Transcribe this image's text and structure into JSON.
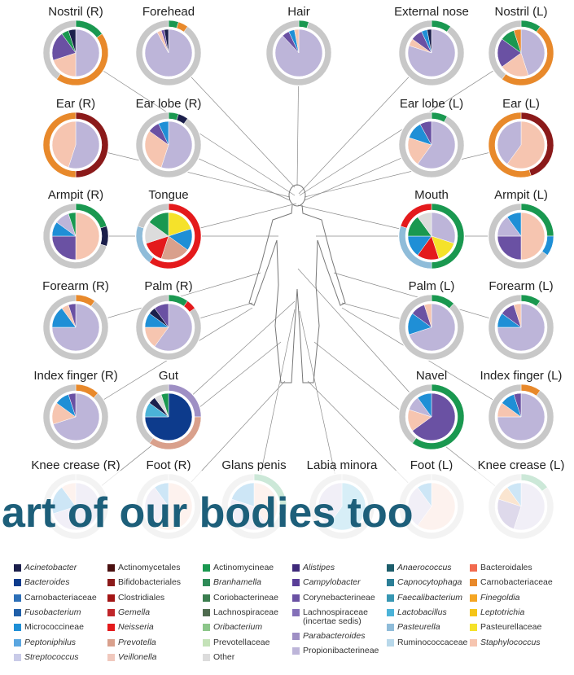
{
  "sites": [
    {
      "label": "Nostril (R)",
      "inner": [
        {
          "color": "#bdb5d9",
          "value": 50
        },
        {
          "color": "#f6c5b0",
          "value": 20
        },
        {
          "color": "#6a51a3",
          "value": 20
        },
        {
          "color": "#1a9850",
          "value": 5
        },
        {
          "color": "#1b1f4b",
          "value": 5
        }
      ],
      "outer": [
        {
          "color": "#1a9850",
          "value": 15
        },
        {
          "color": "#e8892b",
          "value": 45
        },
        {
          "color": "#c8c8c8",
          "value": 40
        }
      ]
    },
    {
      "label": "Forehead",
      "inner": [
        {
          "color": "#bdb5d9",
          "value": 92
        },
        {
          "color": "#f6c5b0",
          "value": 3
        },
        {
          "color": "#6a51a3",
          "value": 2
        },
        {
          "color": "#1b1f4b",
          "value": 3
        }
      ],
      "outer": [
        {
          "color": "#1a9850",
          "value": 5
        },
        {
          "color": "#e8892b",
          "value": 5
        },
        {
          "color": "#c8c8c8",
          "value": 90
        }
      ]
    },
    {
      "label": "Hair",
      "inner": [
        {
          "color": "#bdb5d9",
          "value": 88
        },
        {
          "color": "#6a51a3",
          "value": 5
        },
        {
          "color": "#1f8fd6",
          "value": 4
        },
        {
          "color": "#f6c5b0",
          "value": 3
        }
      ],
      "outer": [
        {
          "color": "#1a9850",
          "value": 5
        },
        {
          "color": "#c8c8c8",
          "value": 95
        }
      ]
    },
    {
      "label": "External nose",
      "inner": [
        {
          "color": "#bdb5d9",
          "value": 80
        },
        {
          "color": "#f6c5b0",
          "value": 5
        },
        {
          "color": "#6a51a3",
          "value": 8
        },
        {
          "color": "#1f8fd6",
          "value": 4
        },
        {
          "color": "#1b1f4b",
          "value": 3
        }
      ],
      "outer": [
        {
          "color": "#1a9850",
          "value": 10
        },
        {
          "color": "#c8c8c8",
          "value": 90
        }
      ]
    },
    {
      "label": "Nostril (L)",
      "inner": [
        {
          "color": "#bdb5d9",
          "value": 45
        },
        {
          "color": "#f6c5b0",
          "value": 20
        },
        {
          "color": "#6a51a3",
          "value": 20
        },
        {
          "color": "#1a9850",
          "value": 10
        },
        {
          "color": "#e8892b",
          "value": 5
        }
      ],
      "outer": [
        {
          "color": "#1a9850",
          "value": 10
        },
        {
          "color": "#e8892b",
          "value": 50
        },
        {
          "color": "#c8c8c8",
          "value": 40
        }
      ]
    },
    {
      "label": "Ear (R)",
      "inner": [
        {
          "color": "#bdb5d9",
          "value": 55
        },
        {
          "color": "#f6c5b0",
          "value": 45
        }
      ],
      "outer": [
        {
          "color": "#8b1a1a",
          "value": 50
        },
        {
          "color": "#e8892b",
          "value": 50
        }
      ]
    },
    {
      "label": "Ear lobe (R)",
      "inner": [
        {
          "color": "#bdb5d9",
          "value": 55
        },
        {
          "color": "#f6c5b0",
          "value": 30
        },
        {
          "color": "#6a51a3",
          "value": 8
        },
        {
          "color": "#1f8fd6",
          "value": 7
        }
      ],
      "outer": [
        {
          "color": "#1a9850",
          "value": 5
        },
        {
          "color": "#1b1f4b",
          "value": 5
        },
        {
          "color": "#c8c8c8",
          "value": 90
        }
      ]
    },
    {
      "label": "Ear lobe (L)",
      "inner": [
        {
          "color": "#bdb5d9",
          "value": 60
        },
        {
          "color": "#f6c5b0",
          "value": 20
        },
        {
          "color": "#1f8fd6",
          "value": 12
        },
        {
          "color": "#6a51a3",
          "value": 8
        }
      ],
      "outer": [
        {
          "color": "#1a9850",
          "value": 8
        },
        {
          "color": "#c8c8c8",
          "value": 92
        }
      ]
    },
    {
      "label": "Ear (L)",
      "inner": [
        {
          "color": "#f6c5b0",
          "value": 60
        },
        {
          "color": "#bdb5d9",
          "value": 40
        }
      ],
      "outer": [
        {
          "color": "#8b1a1a",
          "value": 45
        },
        {
          "color": "#e8892b",
          "value": 55
        }
      ]
    },
    {
      "label": "Armpit (R)",
      "inner": [
        {
          "color": "#f6c5b0",
          "value": 50
        },
        {
          "color": "#6a51a3",
          "value": 25
        },
        {
          "color": "#1f8fd6",
          "value": 10
        },
        {
          "color": "#bdb5d9",
          "value": 10
        },
        {
          "color": "#1a9850",
          "value": 5
        }
      ],
      "outer": [
        {
          "color": "#1a9850",
          "value": 20
        },
        {
          "color": "#1b1f4b",
          "value": 10
        },
        {
          "color": "#c8c8c8",
          "value": 70
        }
      ]
    },
    {
      "label": "Tongue",
      "inner": [
        {
          "color": "#f5e22a",
          "value": 20
        },
        {
          "color": "#1f8fd6",
          "value": 15
        },
        {
          "color": "#d9a08c",
          "value": 20
        },
        {
          "color": "#e41a1c",
          "value": 15
        },
        {
          "color": "#dcdcdc",
          "value": 15
        },
        {
          "color": "#1a9850",
          "value": 15
        }
      ],
      "outer": [
        {
          "color": "#e41a1c",
          "value": 60
        },
        {
          "color": "#8fbcd9",
          "value": 20
        },
        {
          "color": "#c8c8c8",
          "value": 20
        }
      ]
    },
    {
      "label": "Mouth",
      "inner": [
        {
          "color": "#bdb5d9",
          "value": 30
        },
        {
          "color": "#f5e22a",
          "value": 15
        },
        {
          "color": "#e41a1c",
          "value": 15
        },
        {
          "color": "#1f8fd6",
          "value": 15
        },
        {
          "color": "#1a9850",
          "value": 15
        },
        {
          "color": "#dcdcdc",
          "value": 10
        }
      ],
      "outer": [
        {
          "color": "#1a9850",
          "value": 50
        },
        {
          "color": "#8fbcd9",
          "value": 30
        },
        {
          "color": "#e41a1c",
          "value": 20
        }
      ]
    },
    {
      "label": "Armpit (L)",
      "inner": [
        {
          "color": "#f6c5b0",
          "value": 50
        },
        {
          "color": "#6a51a3",
          "value": 25
        },
        {
          "color": "#bdb5d9",
          "value": 15
        },
        {
          "color": "#1f8fd6",
          "value": 10
        }
      ],
      "outer": [
        {
          "color": "#1a9850",
          "value": 25
        },
        {
          "color": "#1f8fd6",
          "value": 10
        },
        {
          "color": "#c8c8c8",
          "value": 65
        }
      ]
    },
    {
      "label": "Forearm (R)",
      "inner": [
        {
          "color": "#bdb5d9",
          "value": 75
        },
        {
          "color": "#1f8fd6",
          "value": 15
        },
        {
          "color": "#f6c5b0",
          "value": 5
        },
        {
          "color": "#6a51a3",
          "value": 5
        }
      ],
      "outer": [
        {
          "color": "#e8892b",
          "value": 10
        },
        {
          "color": "#c8c8c8",
          "value": 90
        }
      ]
    },
    {
      "label": "Palm (R)",
      "inner": [
        {
          "color": "#bdb5d9",
          "value": 60
        },
        {
          "color": "#f6c5b0",
          "value": 15
        },
        {
          "color": "#1f8fd6",
          "value": 10
        },
        {
          "color": "#1b1f4b",
          "value": 5
        },
        {
          "color": "#6a51a3",
          "value": 10
        }
      ],
      "outer": [
        {
          "color": "#1a9850",
          "value": 10
        },
        {
          "color": "#e41a1c",
          "value": 5
        },
        {
          "color": "#c8c8c8",
          "value": 85
        }
      ]
    },
    {
      "label": "Palm (L)",
      "inner": [
        {
          "color": "#bdb5d9",
          "value": 70
        },
        {
          "color": "#1f8fd6",
          "value": 15
        },
        {
          "color": "#6a51a3",
          "value": 10
        },
        {
          "color": "#f6c5b0",
          "value": 5
        }
      ],
      "outer": [
        {
          "color": "#1a9850",
          "value": 12
        },
        {
          "color": "#c8c8c8",
          "value": 88
        }
      ]
    },
    {
      "label": "Forearm (L)",
      "inner": [
        {
          "color": "#bdb5d9",
          "value": 75
        },
        {
          "color": "#1f8fd6",
          "value": 10
        },
        {
          "color": "#6a51a3",
          "value": 10
        },
        {
          "color": "#f6c5b0",
          "value": 5
        }
      ],
      "outer": [
        {
          "color": "#1a9850",
          "value": 10
        },
        {
          "color": "#c8c8c8",
          "value": 90
        }
      ]
    },
    {
      "label": "Index finger (R)",
      "inner": [
        {
          "color": "#bdb5d9",
          "value": 70
        },
        {
          "color": "#f6c5b0",
          "value": 15
        },
        {
          "color": "#1f8fd6",
          "value": 10
        },
        {
          "color": "#6a51a3",
          "value": 5
        }
      ],
      "outer": [
        {
          "color": "#e8892b",
          "value": 12
        },
        {
          "color": "#c8c8c8",
          "value": 88
        }
      ]
    },
    {
      "label": "Gut",
      "inner": [
        {
          "color": "#0d3b8c",
          "value": 75
        },
        {
          "color": "#4bb3d8",
          "value": 10
        },
        {
          "color": "#1b1f4b",
          "value": 5
        },
        {
          "color": "#dcdcdc",
          "value": 5
        },
        {
          "color": "#1a9850",
          "value": 5
        }
      ],
      "outer": [
        {
          "color": "#9e8fc4",
          "value": 25
        },
        {
          "color": "#d9a08c",
          "value": 35
        },
        {
          "color": "#c8c8c8",
          "value": 40
        }
      ]
    },
    {
      "label": "Navel",
      "inner": [
        {
          "color": "#6a51a3",
          "value": 65
        },
        {
          "color": "#f6c5b0",
          "value": 15
        },
        {
          "color": "#bdb5d9",
          "value": 10
        },
        {
          "color": "#1f8fd6",
          "value": 10
        }
      ],
      "outer": [
        {
          "color": "#1a9850",
          "value": 60
        },
        {
          "color": "#c8c8c8",
          "value": 40
        }
      ]
    },
    {
      "label": "Index finger (L)",
      "inner": [
        {
          "color": "#bdb5d9",
          "value": 75
        },
        {
          "color": "#f6c5b0",
          "value": 10
        },
        {
          "color": "#1f8fd6",
          "value": 10
        },
        {
          "color": "#6a51a3",
          "value": 5
        }
      ],
      "outer": [
        {
          "color": "#e8892b",
          "value": 10
        },
        {
          "color": "#c8c8c8",
          "value": 90
        }
      ]
    },
    {
      "label": "Knee crease (R)",
      "inner": [
        {
          "color": "#bdb5d9",
          "value": 70
        },
        {
          "color": "#1f8fd6",
          "value": 20
        },
        {
          "color": "#f6c5b0",
          "value": 10
        }
      ],
      "outer": [
        {
          "color": "#c8c8c8",
          "value": 100
        }
      ]
    },
    {
      "label": "Foot (R)",
      "inner": [
        {
          "color": "#f6c5b0",
          "value": 60
        },
        {
          "color": "#bdb5d9",
          "value": 30
        },
        {
          "color": "#1f8fd6",
          "value": 10
        }
      ],
      "outer": [
        {
          "color": "#c8c8c8",
          "value": 100
        }
      ]
    },
    {
      "label": "Glans penis",
      "inner": [
        {
          "color": "#f6c5b0",
          "value": 40
        },
        {
          "color": "#bdb5d9",
          "value": 40
        },
        {
          "color": "#1f8fd6",
          "value": 20
        }
      ],
      "outer": [
        {
          "color": "#1a9850",
          "value": 30
        },
        {
          "color": "#c8c8c8",
          "value": 70
        }
      ]
    },
    {
      "label": "Labia minora",
      "inner": [
        {
          "color": "#4bb3d8",
          "value": 60
        },
        {
          "color": "#bdb5d9",
          "value": 40
        }
      ],
      "outer": [
        {
          "color": "#c8c8c8",
          "value": 100
        }
      ]
    },
    {
      "label": "Foot (L)",
      "inner": [
        {
          "color": "#f6c5b0",
          "value": 60
        },
        {
          "color": "#bdb5d9",
          "value": 30
        },
        {
          "color": "#1f8fd6",
          "value": 10
        }
      ],
      "outer": [
        {
          "color": "#c8c8c8",
          "value": 100
        }
      ]
    },
    {
      "label": "Knee crease (L)",
      "inner": [
        {
          "color": "#bdb5d9",
          "value": 55
        },
        {
          "color": "#6a51a3",
          "value": 25
        },
        {
          "color": "#e8892b",
          "value": 10
        },
        {
          "color": "#1f8fd6",
          "value": 10
        }
      ],
      "outer": [
        {
          "color": "#1a9850",
          "value": 15
        },
        {
          "color": "#c8c8c8",
          "value": 85
        }
      ]
    }
  ],
  "banner_text": "art of our bodies too",
  "legend": [
    {
      "label": "Acinetobacter",
      "color": "#1b1f4b",
      "italic": true
    },
    {
      "label": "Bacteroides",
      "color": "#0d3b8c",
      "italic": true
    },
    {
      "label": "Carnobacteriaceae",
      "color": "#2c6fb7",
      "italic": false
    },
    {
      "label": "Fusobacterium",
      "color": "#1f5fa8",
      "italic": true
    },
    {
      "label": "Micrococcineae",
      "color": "#1f8fd6",
      "italic": false
    },
    {
      "label": "Peptoniphilus",
      "color": "#5aa6e0",
      "italic": true
    },
    {
      "label": "Streptococcus",
      "color": "#c9cbe8",
      "italic": true
    },
    {
      "label": "Actinomycetales",
      "color": "#4a1010",
      "italic": false
    },
    {
      "label": "Bifidobacteriales",
      "color": "#8b1a1a",
      "italic": false
    },
    {
      "label": "Clostridiales",
      "color": "#a31515",
      "italic": false
    },
    {
      "label": "Gemella",
      "color": "#c0262a",
      "italic": true
    },
    {
      "label": "Neisseria",
      "color": "#e41a1c",
      "italic": true
    },
    {
      "label": "Prevotella",
      "color": "#d9a08c",
      "italic": true
    },
    {
      "label": "Veillonella",
      "color": "#f0c8bd",
      "italic": true
    },
    {
      "label": "Actinomycineae",
      "color": "#1a9850",
      "italic": false
    },
    {
      "label": "Branhamella",
      "color": "#2e8b57",
      "italic": true
    },
    {
      "label": "Coriobacterineae",
      "color": "#3b7d4f",
      "italic": false
    },
    {
      "label": "Lachnospiraceae",
      "color": "#4f6b4f",
      "italic": false
    },
    {
      "label": "Oribacterium",
      "color": "#8cc68a",
      "italic": true
    },
    {
      "label": "Prevotellaceae",
      "color": "#c4e2b8",
      "italic": false
    },
    {
      "label": "Other",
      "color": "#dcdcdc",
      "italic": false
    },
    {
      "label": "Alistipes",
      "color": "#3f2a7a",
      "italic": true
    },
    {
      "label": "Campylobacter",
      "color": "#5a3f98",
      "italic": true
    },
    {
      "label": "Corynebacterineae",
      "color": "#6a51a3",
      "italic": false
    },
    {
      "label": "Lachnospiraceae (incertae sedis)",
      "color": "#8470b8",
      "italic": false
    },
    {
      "label": "Parabacteroides",
      "color": "#9e8fc4",
      "italic": true
    },
    {
      "label": "Propionibacterineae",
      "color": "#bdb5d9",
      "italic": false
    },
    {
      "label": "Anaerococcus",
      "color": "#1c5d6b",
      "italic": true
    },
    {
      "label": "Capnocytophaga",
      "color": "#2b7e96",
      "italic": true
    },
    {
      "label": "Faecalibacterium",
      "color": "#3797b3",
      "italic": true
    },
    {
      "label": "Lactobacillus",
      "color": "#4bb3d8",
      "italic": true
    },
    {
      "label": "Pasteurella",
      "color": "#8fbcd9",
      "italic": true
    },
    {
      "label": "Ruminococcaceae",
      "color": "#b8d8ea",
      "italic": false
    },
    {
      "label": "Bacteroidales",
      "color": "#f26b4f",
      "italic": false
    },
    {
      "label": "Carnobacteriaceae",
      "color": "#e8892b",
      "italic": false
    },
    {
      "label": "Finegoldia",
      "color": "#f5a623",
      "italic": true
    },
    {
      "label": "Leptotrichia",
      "color": "#f5c518",
      "italic": true
    },
    {
      "label": "Pasteurellaceae",
      "color": "#f5e22a",
      "italic": false
    },
    {
      "label": "Staphylococcus",
      "color": "#f6c5b0",
      "italic": true
    }
  ]
}
